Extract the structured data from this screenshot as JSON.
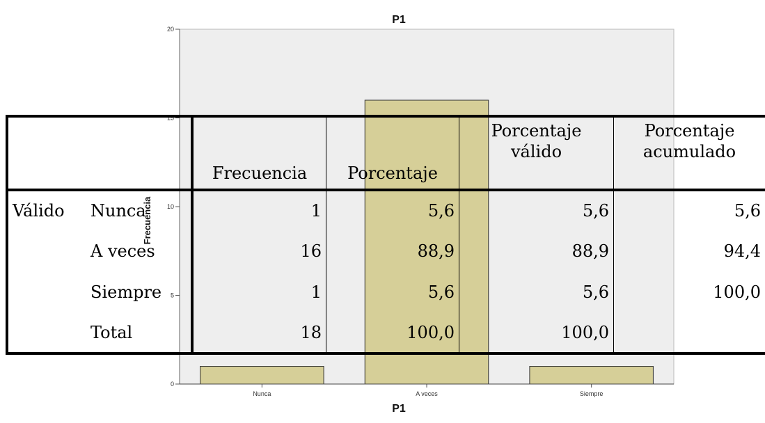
{
  "chart_data": {
    "type": "bar",
    "title": "P1",
    "xlabel": "P1",
    "ylabel": "Frecuencia",
    "categories": [
      "Nunca",
      "A veces",
      "Siempre"
    ],
    "values": [
      1,
      16,
      1
    ],
    "ylim": [
      0,
      20
    ],
    "yticks": [
      0,
      5,
      10,
      15,
      20
    ],
    "ytick_labels": [
      "0",
      "5",
      "10",
      "15",
      "20"
    ],
    "grid": false,
    "colors": {
      "bar_fill": "#d6cf98",
      "bar_stroke": "#333333",
      "plot_bg": "#eeeeee"
    }
  },
  "table": {
    "headers": {
      "frecuencia": "Frecuencia",
      "porcentaje": "Porcentaje",
      "porcentaje_valido": "Porcentaje válido",
      "porcentaje_acumulado": "Porcentaje acumulado"
    },
    "group_label": "Válido",
    "rows": [
      {
        "label": "Nunca",
        "frecuencia": "1",
        "porcentaje": "5,6",
        "valido": "5,6",
        "acumulado": "5,6"
      },
      {
        "label": "A veces",
        "frecuencia": "16",
        "porcentaje": "88,9",
        "valido": "88,9",
        "acumulado": "94,4"
      },
      {
        "label": "Siempre",
        "frecuencia": "1",
        "porcentaje": "5,6",
        "valido": "5,6",
        "acumulado": "100,0"
      },
      {
        "label": "Total",
        "frecuencia": "18",
        "porcentaje": "100,0",
        "valido": "100,0",
        "acumulado": ""
      }
    ]
  }
}
